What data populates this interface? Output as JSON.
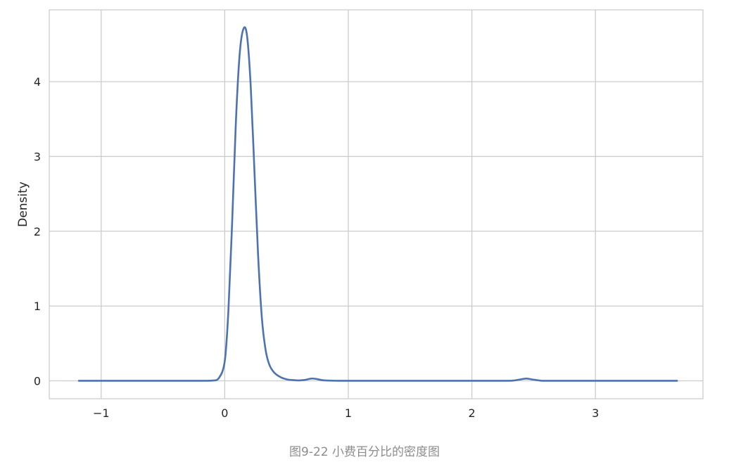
{
  "figure": {
    "caption": "图9-22 小费百分比的密度图"
  },
  "chart_data": {
    "type": "line",
    "title": "",
    "xlabel": "",
    "ylabel": "Density",
    "xlim": [
      -1.42,
      3.87
    ],
    "ylim": [
      -0.24,
      4.96
    ],
    "xticks": [
      -1,
      0,
      1,
      2,
      3
    ],
    "xtick_labels": [
      "−1",
      "0",
      "1",
      "2",
      "3"
    ],
    "yticks": [
      0,
      1,
      2,
      3,
      4
    ],
    "ytick_labels": [
      "0",
      "1",
      "2",
      "3",
      "4"
    ],
    "grid": true,
    "legend": "none",
    "line_color": "#4c72b0",
    "grid_color": "#cccccc",
    "series": [
      {
        "x": [
          -1.18,
          -0.6,
          -0.2,
          -0.1,
          -0.05,
          0.0,
          0.03,
          0.06,
          0.09,
          0.12,
          0.15,
          0.18,
          0.21,
          0.24,
          0.27,
          0.3,
          0.33,
          0.36,
          0.4,
          0.45,
          0.5,
          0.55,
          0.6,
          0.65,
          0.7,
          0.74,
          0.8,
          0.9,
          1.0,
          1.5,
          2.0,
          2.3,
          2.38,
          2.44,
          2.5,
          2.58,
          2.7,
          3.0,
          3.66
        ],
        "y": [
          0.0,
          0.0,
          0.0,
          0.003,
          0.03,
          0.26,
          0.95,
          2.12,
          3.45,
          4.35,
          4.7,
          4.62,
          3.95,
          2.82,
          1.68,
          0.85,
          0.42,
          0.22,
          0.11,
          0.05,
          0.02,
          0.01,
          0.005,
          0.012,
          0.03,
          0.025,
          0.006,
          0.001,
          0.0,
          0.0,
          0.0,
          0.0,
          0.015,
          0.03,
          0.015,
          0.0,
          0.0,
          0.0,
          0.0
        ]
      }
    ]
  }
}
